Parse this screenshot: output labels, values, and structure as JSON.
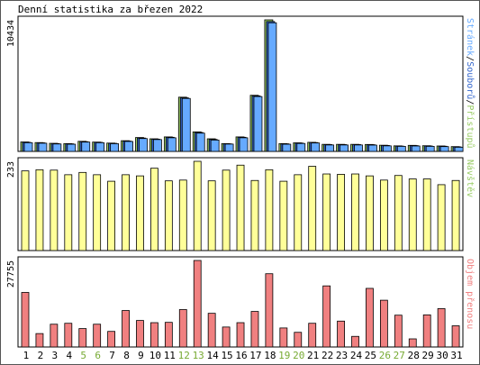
{
  "chart_data": [
    {
      "type": "bar",
      "title": "Denní statistika za březen 2022",
      "ylabel_max": "10434",
      "ylim": [
        0,
        10434
      ],
      "legend": [
        "Stránek",
        "Souborů",
        "Přístupů"
      ],
      "legend_separator": "/",
      "categories": [
        "1",
        "2",
        "3",
        "4",
        "5",
        "6",
        "7",
        "8",
        "9",
        "10",
        "11",
        "12",
        "13",
        "14",
        "15",
        "16",
        "17",
        "18",
        "19",
        "20",
        "21",
        "22",
        "23",
        "24",
        "25",
        "26",
        "27",
        "28",
        "29",
        "30",
        "31"
      ],
      "weekend_days": [
        "5",
        "6",
        "12",
        "13",
        "19",
        "20",
        "26",
        "27"
      ],
      "series": [
        {
          "name": "Přístupů",
          "values": [
            750,
            700,
            640,
            620,
            800,
            740,
            660,
            850,
            1100,
            1000,
            1150,
            4300,
            1550,
            1000,
            620,
            1150,
            4450,
            10434,
            620,
            680,
            720,
            560,
            560,
            560,
            550,
            490,
            440,
            480,
            450,
            430,
            380
          ]
        },
        {
          "name": "Souborů",
          "values": [
            720,
            680,
            620,
            600,
            770,
            720,
            640,
            820,
            1060,
            970,
            1120,
            4250,
            1500,
            950,
            600,
            1120,
            4400,
            10300,
            600,
            660,
            700,
            540,
            540,
            540,
            530,
            470,
            420,
            460,
            430,
            410,
            360
          ]
        },
        {
          "name": "Stránek",
          "values": [
            690,
            650,
            590,
            570,
            740,
            690,
            610,
            790,
            1020,
            940,
            1080,
            4200,
            1450,
            900,
            580,
            1080,
            4350,
            10200,
            570,
            630,
            670,
            510,
            510,
            510,
            500,
            440,
            400,
            430,
            400,
            380,
            330
          ]
        }
      ]
    },
    {
      "type": "bar",
      "ylabel_max": "233",
      "ylim": [
        0,
        233
      ],
      "legend": [
        "Návštěv"
      ],
      "categories": [
        "1",
        "2",
        "3",
        "4",
        "5",
        "6",
        "7",
        "8",
        "9",
        "10",
        "11",
        "12",
        "13",
        "14",
        "15",
        "16",
        "17",
        "18",
        "19",
        "20",
        "21",
        "22",
        "23",
        "24",
        "25",
        "26",
        "27",
        "28",
        "29",
        "30",
        "31"
      ],
      "series": [
        {
          "name": "Návštěv",
          "values": [
            208,
            211,
            210,
            198,
            204,
            198,
            181,
            198,
            195,
            215,
            182,
            184,
            233,
            182,
            210,
            223,
            183,
            211,
            181,
            198,
            220,
            200,
            199,
            200,
            195,
            184,
            196,
            187,
            187,
            172,
            183
          ]
        }
      ]
    },
    {
      "type": "bar",
      "ylabel_max": "27755",
      "ylim": [
        0,
        27755
      ],
      "legend": [
        "Objem přenosu"
      ],
      "categories": [
        "1",
        "2",
        "3",
        "4",
        "5",
        "6",
        "7",
        "8",
        "9",
        "10",
        "11",
        "12",
        "13",
        "14",
        "15",
        "16",
        "17",
        "18",
        "19",
        "20",
        "21",
        "22",
        "23",
        "24",
        "25",
        "26",
        "27",
        "28",
        "29",
        "30",
        "31"
      ],
      "series": [
        {
          "name": "Objem přenosu",
          "values": [
            17500,
            4300,
            7300,
            7600,
            5900,
            7300,
            5000,
            11700,
            8500,
            7800,
            7900,
            12000,
            27755,
            10800,
            6400,
            7800,
            11400,
            23500,
            6100,
            4700,
            7600,
            19600,
            8300,
            3400,
            18800,
            15000,
            10200,
            2600,
            10300,
            12300,
            6800
          ]
        }
      ]
    }
  ]
}
